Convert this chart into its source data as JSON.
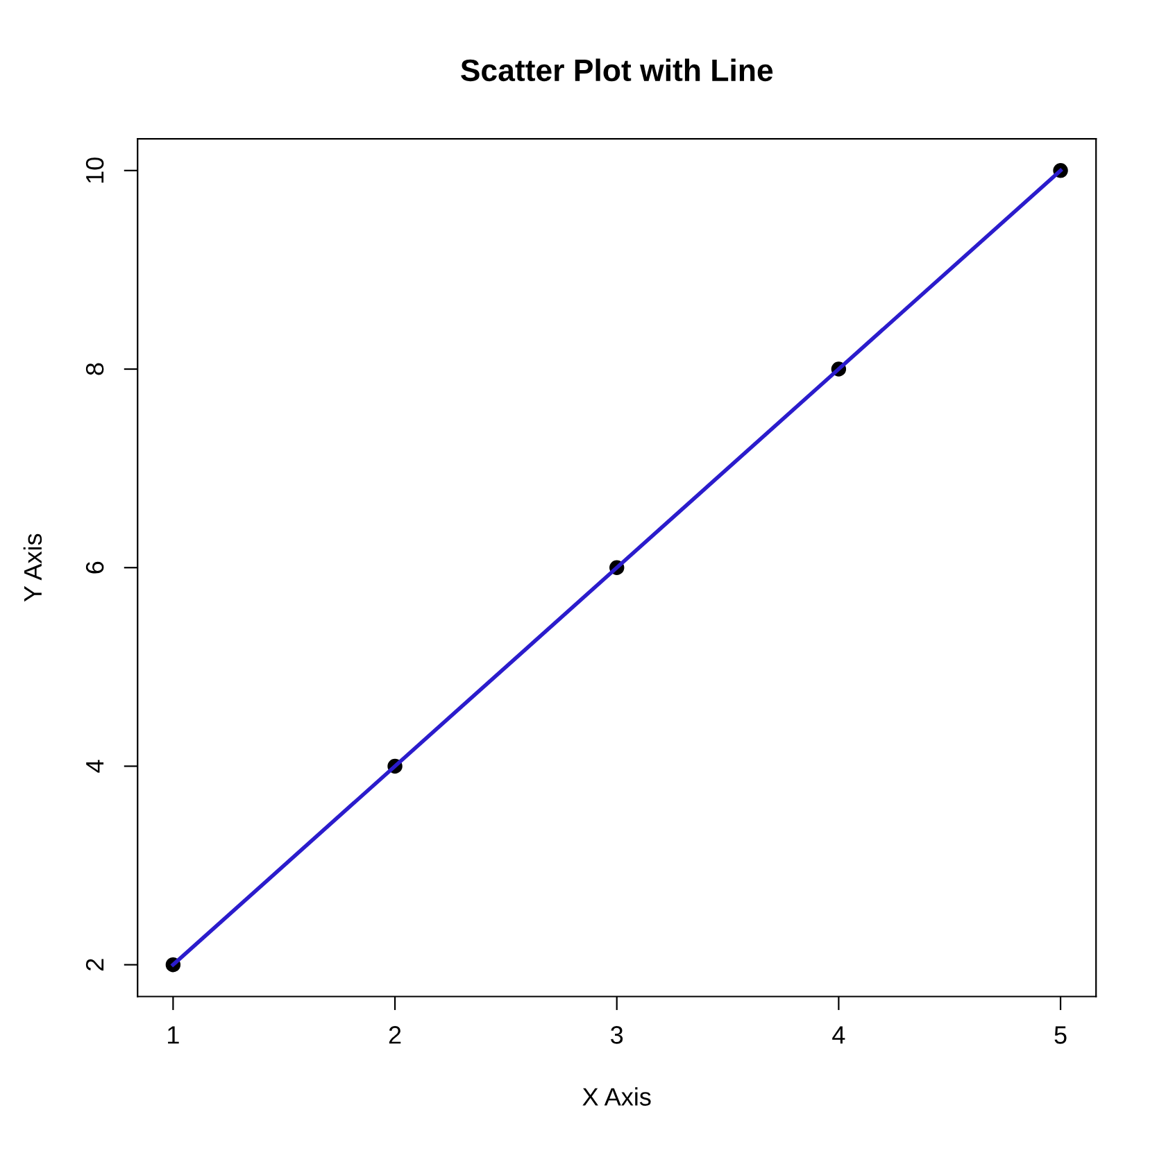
{
  "chart_data": {
    "type": "line",
    "title": "Scatter Plot with Line",
    "xlabel": "X Axis",
    "ylabel": "Y Axis",
    "x": [
      1,
      2,
      3,
      4,
      5
    ],
    "series": [
      {
        "type": "scatter",
        "color": "#000000",
        "values": [
          2,
          4,
          6,
          8,
          10
        ],
        "marker": "circle"
      },
      {
        "color": "#2b1ccc",
        "values": [
          2,
          4,
          6,
          8,
          10
        ],
        "line_style": "solid"
      }
    ],
    "xlim": [
      0.84,
      5.16
    ],
    "ylim": [
      1.68,
      10.32
    ],
    "xticks": [
      1,
      2,
      3,
      4,
      5
    ],
    "yticks": [
      2,
      4,
      6,
      8,
      10
    ],
    "grid": false
  }
}
